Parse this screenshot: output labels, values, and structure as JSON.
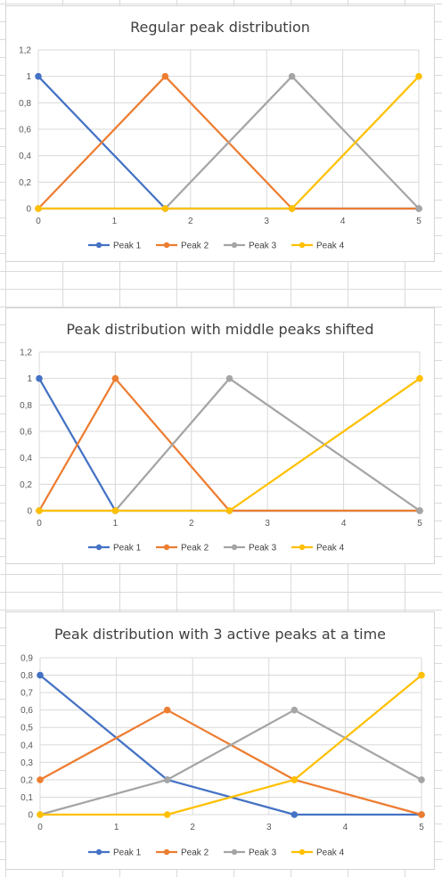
{
  "colors": {
    "peak1": "#4472c4",
    "peak2": "#ed7d31",
    "peak3": "#a5a5a5",
    "peak4": "#ffc000"
  },
  "chart_data": [
    {
      "type": "line",
      "title": "Regular peak distribution",
      "xlabel": "",
      "ylabel": "",
      "xlim": [
        0,
        5
      ],
      "ylim": [
        0,
        1.2
      ],
      "xticks": [
        "0",
        "1",
        "2",
        "3",
        "4",
        "5"
      ],
      "yticks": [
        "0",
        "0,2",
        "0,4",
        "0,6",
        "0,8",
        "1",
        "1,2"
      ],
      "grid": true,
      "legend": "bottom",
      "series": [
        {
          "name": "Peak 1",
          "color": "#4472c4",
          "points": [
            [
              0,
              1
            ],
            [
              1.667,
              0
            ],
            [
              3.333,
              0
            ],
            [
              5,
              0
            ]
          ]
        },
        {
          "name": "Peak 2",
          "color": "#ed7d31",
          "points": [
            [
              0,
              0
            ],
            [
              1.667,
              1
            ],
            [
              3.333,
              0
            ],
            [
              5,
              0
            ]
          ]
        },
        {
          "name": "Peak 3",
          "color": "#a5a5a5",
          "points": [
            [
              0,
              0
            ],
            [
              1.667,
              0
            ],
            [
              3.333,
              1
            ],
            [
              5,
              0
            ]
          ]
        },
        {
          "name": "Peak 4",
          "color": "#ffc000",
          "points": [
            [
              0,
              0
            ],
            [
              1.667,
              0
            ],
            [
              3.333,
              0
            ],
            [
              5,
              1
            ]
          ]
        }
      ]
    },
    {
      "type": "line",
      "title": "Peak distribution with middle peaks shifted",
      "xlabel": "",
      "ylabel": "",
      "xlim": [
        0,
        5
      ],
      "ylim": [
        0,
        1.2
      ],
      "xticks": [
        "0",
        "1",
        "2",
        "3",
        "4",
        "5"
      ],
      "yticks": [
        "0",
        "0,2",
        "0,4",
        "0,6",
        "0,8",
        "1",
        "1,2"
      ],
      "grid": true,
      "legend": "bottom",
      "series": [
        {
          "name": "Peak 1",
          "color": "#4472c4",
          "points": [
            [
              0,
              1
            ],
            [
              1,
              0
            ],
            [
              2.5,
              0
            ],
            [
              5,
              0
            ]
          ]
        },
        {
          "name": "Peak 2",
          "color": "#ed7d31",
          "points": [
            [
              0,
              0
            ],
            [
              1,
              1
            ],
            [
              2.5,
              0
            ],
            [
              5,
              0
            ]
          ]
        },
        {
          "name": "Peak 3",
          "color": "#a5a5a5",
          "points": [
            [
              0,
              0
            ],
            [
              1,
              0
            ],
            [
              2.5,
              1
            ],
            [
              5,
              0
            ]
          ]
        },
        {
          "name": "Peak 4",
          "color": "#ffc000",
          "points": [
            [
              0,
              0
            ],
            [
              1,
              0
            ],
            [
              2.5,
              0
            ],
            [
              5,
              1
            ]
          ]
        }
      ]
    },
    {
      "type": "line",
      "title": "Peak distribution with 3 active peaks at a time",
      "xlabel": "",
      "ylabel": "",
      "xlim": [
        0,
        5
      ],
      "ylim": [
        0,
        0.9
      ],
      "xticks": [
        "0",
        "1",
        "2",
        "3",
        "4",
        "5"
      ],
      "yticks": [
        "0",
        "0,1",
        "0,2",
        "0,3",
        "0,4",
        "0,5",
        "0,6",
        "0,7",
        "0,8",
        "0,9"
      ],
      "grid": true,
      "legend": "bottom",
      "series": [
        {
          "name": "Peak 1",
          "color": "#4472c4",
          "points": [
            [
              0,
              0.8
            ],
            [
              1.667,
              0.2
            ],
            [
              3.333,
              0
            ],
            [
              5,
              0
            ]
          ]
        },
        {
          "name": "Peak 2",
          "color": "#ed7d31",
          "points": [
            [
              0,
              0.2
            ],
            [
              1.667,
              0.6
            ],
            [
              3.333,
              0.2
            ],
            [
              5,
              0
            ]
          ]
        },
        {
          "name": "Peak 3",
          "color": "#a5a5a5",
          "points": [
            [
              0,
              0
            ],
            [
              1.667,
              0.2
            ],
            [
              3.333,
              0.6
            ],
            [
              5,
              0.2
            ]
          ]
        },
        {
          "name": "Peak 4",
          "color": "#ffc000",
          "points": [
            [
              0,
              0
            ],
            [
              1.667,
              0
            ],
            [
              3.333,
              0.2
            ],
            [
              5,
              0.8
            ]
          ]
        }
      ]
    }
  ]
}
